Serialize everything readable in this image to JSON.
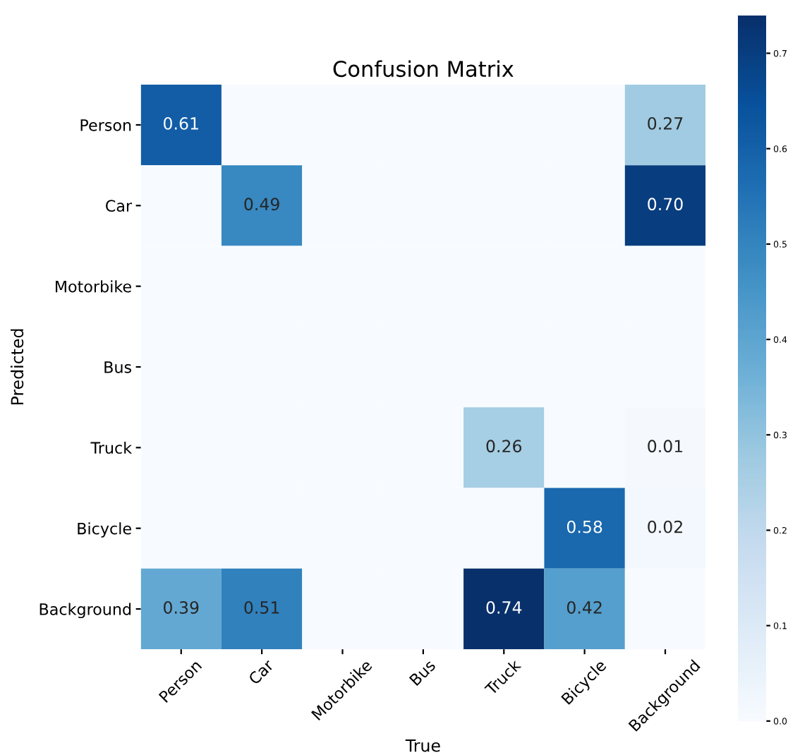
{
  "chart_data": {
    "type": "heatmap",
    "title": "Confusion Matrix",
    "xlabel": "True",
    "ylabel": "Predicted",
    "categories": [
      "Person",
      "Car",
      "Motorbike",
      "Bus",
      "Truck",
      "Bicycle",
      "Background"
    ],
    "y_categories": [
      "Person",
      "Car",
      "Motorbike",
      "Bus",
      "Truck",
      "Bicycle",
      "Background"
    ],
    "cells": [
      [
        0.61,
        0,
        0,
        0,
        0,
        0,
        0.27
      ],
      [
        0,
        0.49,
        0,
        0,
        0,
        0,
        0.7
      ],
      [
        0,
        0,
        0,
        0,
        0,
        0,
        0
      ],
      [
        0,
        0,
        0,
        0,
        0,
        0,
        0
      ],
      [
        0,
        0,
        0,
        0,
        0.26,
        0,
        0.01
      ],
      [
        0,
        0,
        0,
        0,
        0,
        0.58,
        0.02
      ],
      [
        0.39,
        0.51,
        0,
        0,
        0.74,
        0.42,
        0
      ]
    ],
    "cell_labels": [
      [
        "0.61",
        null,
        null,
        null,
        null,
        null,
        "0.27"
      ],
      [
        null,
        "0.49",
        null,
        null,
        null,
        null,
        "0.70"
      ],
      [
        null,
        null,
        null,
        null,
        null,
        null,
        null
      ],
      [
        null,
        null,
        null,
        null,
        null,
        null,
        null
      ],
      [
        null,
        null,
        null,
        null,
        "0.26",
        null,
        "0.01"
      ],
      [
        null,
        null,
        null,
        null,
        null,
        "0.58",
        "0.02"
      ],
      [
        "0.39",
        "0.51",
        null,
        null,
        "0.74",
        "0.42",
        null
      ]
    ],
    "clim": [
      0,
      0.74
    ],
    "cticks": [
      {
        "value": 0,
        "label": "0.0"
      },
      0.1,
      0.2,
      0.3,
      0.4,
      0.5,
      0.6,
      0.7
    ]
  }
}
